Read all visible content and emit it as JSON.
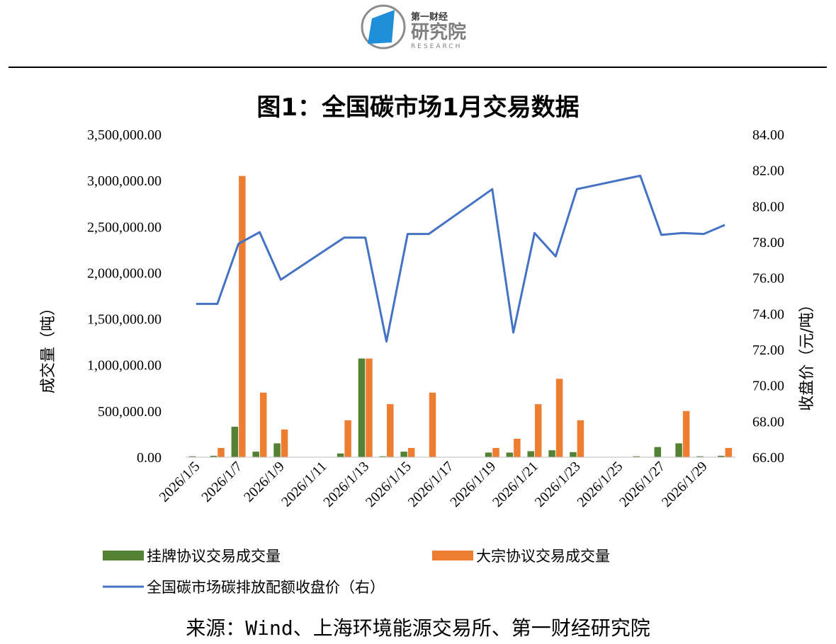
{
  "header": {
    "logo_name_top": "第一财经",
    "logo_name_main": "研究院",
    "logo_name_sub": "RESEARCH"
  },
  "title": "图1：全国碳市场1月交易数据",
  "source": "来源：Wind、上海环境能源交易所、第一财经研究院",
  "colors": {
    "listed": "#548235",
    "block": "#ED7D31",
    "price": "#4472C4",
    "logo_blue": "#1F8FD9"
  },
  "chart_data": {
    "type": "bar+line",
    "x": [
      "2026/1/5",
      "2026/1/6",
      "2026/1/7",
      "2026/1/8",
      "2026/1/9",
      "2026/1/10",
      "2026/1/11",
      "2026/1/12",
      "2026/1/13",
      "2026/1/14",
      "2026/1/15",
      "2026/1/16",
      "2026/1/17",
      "2026/1/18",
      "2026/1/19",
      "2026/1/20",
      "2026/1/21",
      "2026/1/22",
      "2026/1/23",
      "2026/1/24",
      "2026/1/25",
      "2026/1/26",
      "2026/1/27",
      "2026/1/28",
      "2026/1/29",
      "2026/1/30"
    ],
    "x_tick_labels": [
      "2026/1/5",
      "",
      "2026/1/7",
      "",
      "2026/1/9",
      "",
      "2026/1/11",
      "",
      "2026/1/13",
      "",
      "2026/1/15",
      "",
      "2026/1/17",
      "",
      "2026/1/19",
      "",
      "2026/1/21",
      "",
      "2026/1/23",
      "",
      "2026/1/25",
      "",
      "2026/1/27",
      "",
      "2026/1/29",
      ""
    ],
    "series": [
      {
        "name": "挂牌协议交易成交量",
        "kind": "bar",
        "axis": "left",
        "values": [
          10000,
          15000,
          330000,
          60000,
          150000,
          null,
          null,
          40000,
          1070000,
          10000,
          60000,
          null,
          null,
          null,
          50000,
          50000,
          65000,
          75000,
          55000,
          null,
          null,
          10000,
          110000,
          150000,
          10000,
          15000
        ]
      },
      {
        "name": "大宗协议交易成交量",
        "kind": "bar",
        "axis": "left",
        "values": [
          null,
          100000,
          3050000,
          700000,
          300000,
          null,
          null,
          400000,
          1070000,
          575000,
          100000,
          700000,
          null,
          null,
          100000,
          200000,
          575000,
          850000,
          400000,
          null,
          null,
          null,
          null,
          500000,
          null,
          100000
        ]
      },
      {
        "name": "全国碳市场碳排放配额收盘价（右）",
        "kind": "line",
        "axis": "right",
        "values": [
          74.55,
          74.55,
          77.9,
          78.55,
          75.9,
          null,
          null,
          78.25,
          78.25,
          72.45,
          78.45,
          78.45,
          null,
          null,
          80.95,
          72.95,
          78.5,
          77.2,
          80.95,
          null,
          null,
          81.7,
          78.4,
          78.5,
          78.45,
          78.95
        ]
      }
    ],
    "ylabel_left": "成交量（吨）",
    "ylabel_right": "收盘价（元/吨）",
    "ylim_left": [
      0,
      3500000
    ],
    "ylim_right": [
      66,
      84
    ],
    "y_ticks_left": [
      "0.00",
      "500,000.00",
      "1,000,000.00",
      "1,500,000.00",
      "2,000,000.00",
      "2,500,000.00",
      "3,000,000.00",
      "3,500,000.00"
    ],
    "y_ticks_right": [
      "66.00",
      "68.00",
      "70.00",
      "72.00",
      "74.00",
      "76.00",
      "78.00",
      "80.00",
      "82.00",
      "84.00"
    ],
    "grid": false,
    "legend_position": "bottom"
  }
}
